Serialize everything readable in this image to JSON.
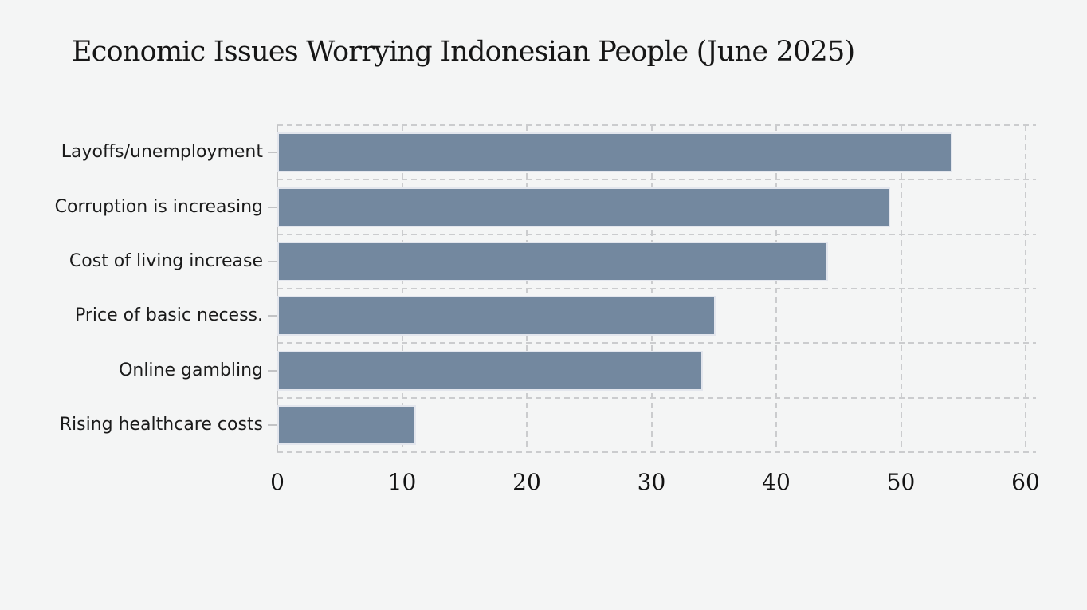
{
  "page": {
    "background_color": "#f4f5f5"
  },
  "title": {
    "text": "Economic Issues Worrying Indonesian People (June 2025)",
    "color": "#161616"
  },
  "chart_data": {
    "type": "bar",
    "orientation": "horizontal",
    "title": "Economic Issues Worrying Indonesian People (June 2025)",
    "categories": [
      "Layoffs/unemployment",
      "Corruption is increasing",
      "Cost of living increase",
      "Price of basic necess.",
      "Online gambling",
      "Rising healthcare costs"
    ],
    "values": [
      54,
      49,
      44,
      35,
      34,
      11
    ],
    "xlabel": "",
    "ylabel": "",
    "xlim": [
      0,
      60.8
    ],
    "x_ticks": [
      0,
      10,
      20,
      30,
      40,
      50,
      60
    ],
    "grid": "dashed-both-axes",
    "legend_position": "none",
    "bar_color": "#73889F",
    "bar_edge_color": "#E3E6ED",
    "grid_color": "#CBCCCE",
    "axis_color": "#C2C3C5",
    "label_color": "#1A1A1A"
  }
}
